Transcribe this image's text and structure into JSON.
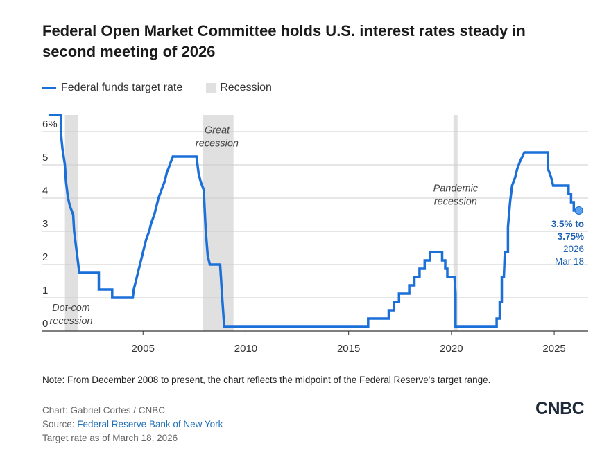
{
  "header": {
    "title": "Federal Open Market Committee holds U.S. interest rates steady in second meeting of 2026"
  },
  "legend": {
    "series_label": "Federal funds target rate",
    "recession_label": "Recession"
  },
  "colors": {
    "series": "#1a6fd8",
    "recession": "#e0e0e0",
    "grid": "#cccccc",
    "annotation_value": "#1a5fb4"
  },
  "chart_data": {
    "type": "line",
    "title": "Federal Open Market Committee holds U.S. interest rates steady in second meeting of 2026",
    "xlabel": "",
    "ylabel": "",
    "xlim": [
      2000.1,
      2026.65
    ],
    "ylim": [
      0,
      6.5
    ],
    "x_ticks": [
      2005,
      2010,
      2015,
      2020,
      2025
    ],
    "y_ticks": [
      0,
      1,
      2,
      3,
      4,
      5,
      6
    ],
    "y_tick_labels": [
      "0",
      "1",
      "2",
      "3",
      "4",
      "5",
      "6%"
    ],
    "grid": true,
    "legend_position": "top-left",
    "series": [
      {
        "name": "Federal funds target rate",
        "points": [
          [
            2000.4,
            6.5
          ],
          [
            2001.0,
            6.5
          ],
          [
            2001.0,
            6.0
          ],
          [
            2001.08,
            5.5
          ],
          [
            2001.2,
            5.0
          ],
          [
            2001.25,
            4.5
          ],
          [
            2001.35,
            4.0
          ],
          [
            2001.45,
            3.75
          ],
          [
            2001.6,
            3.5
          ],
          [
            2001.65,
            3.0
          ],
          [
            2001.75,
            2.5
          ],
          [
            2001.85,
            2.0
          ],
          [
            2001.9,
            1.75
          ],
          [
            2002.85,
            1.75
          ],
          [
            2002.85,
            1.25
          ],
          [
            2003.5,
            1.25
          ],
          [
            2003.5,
            1.0
          ],
          [
            2004.5,
            1.0
          ],
          [
            2004.55,
            1.25
          ],
          [
            2004.65,
            1.5
          ],
          [
            2004.75,
            1.75
          ],
          [
            2004.85,
            2.0
          ],
          [
            2004.95,
            2.25
          ],
          [
            2005.05,
            2.5
          ],
          [
            2005.15,
            2.75
          ],
          [
            2005.3,
            3.0
          ],
          [
            2005.4,
            3.25
          ],
          [
            2005.55,
            3.5
          ],
          [
            2005.65,
            3.75
          ],
          [
            2005.75,
            4.0
          ],
          [
            2005.9,
            4.25
          ],
          [
            2006.05,
            4.5
          ],
          [
            2006.15,
            4.75
          ],
          [
            2006.3,
            5.0
          ],
          [
            2006.45,
            5.25
          ],
          [
            2007.6,
            5.25
          ],
          [
            2007.7,
            4.75
          ],
          [
            2007.8,
            4.5
          ],
          [
            2007.95,
            4.25
          ],
          [
            2008.05,
            3.0
          ],
          [
            2008.15,
            2.25
          ],
          [
            2008.25,
            2.0
          ],
          [
            2008.75,
            2.0
          ],
          [
            2008.8,
            1.5
          ],
          [
            2008.85,
            1.0
          ],
          [
            2008.95,
            0.125
          ],
          [
            2015.95,
            0.125
          ],
          [
            2015.95,
            0.375
          ],
          [
            2016.95,
            0.375
          ],
          [
            2016.95,
            0.625
          ],
          [
            2017.2,
            0.625
          ],
          [
            2017.2,
            0.875
          ],
          [
            2017.45,
            0.875
          ],
          [
            2017.45,
            1.125
          ],
          [
            2017.95,
            1.125
          ],
          [
            2017.95,
            1.375
          ],
          [
            2018.2,
            1.375
          ],
          [
            2018.2,
            1.625
          ],
          [
            2018.45,
            1.625
          ],
          [
            2018.45,
            1.875
          ],
          [
            2018.7,
            1.875
          ],
          [
            2018.7,
            2.125
          ],
          [
            2018.95,
            2.125
          ],
          [
            2018.95,
            2.375
          ],
          [
            2019.55,
            2.375
          ],
          [
            2019.55,
            2.125
          ],
          [
            2019.7,
            2.125
          ],
          [
            2019.7,
            1.875
          ],
          [
            2019.8,
            1.875
          ],
          [
            2019.8,
            1.625
          ],
          [
            2020.15,
            1.625
          ],
          [
            2020.2,
            1.125
          ],
          [
            2020.2,
            0.125
          ],
          [
            2022.2,
            0.125
          ],
          [
            2022.2,
            0.375
          ],
          [
            2022.35,
            0.375
          ],
          [
            2022.35,
            0.875
          ],
          [
            2022.45,
            0.875
          ],
          [
            2022.45,
            1.625
          ],
          [
            2022.55,
            1.625
          ],
          [
            2022.6,
            2.375
          ],
          [
            2022.75,
            2.375
          ],
          [
            2022.75,
            3.125
          ],
          [
            2022.85,
            3.875
          ],
          [
            2022.95,
            4.375
          ],
          [
            2023.1,
            4.625
          ],
          [
            2023.2,
            4.875
          ],
          [
            2023.35,
            5.125
          ],
          [
            2023.55,
            5.375
          ],
          [
            2024.7,
            5.375
          ],
          [
            2024.7,
            4.875
          ],
          [
            2024.85,
            4.625
          ],
          [
            2024.95,
            4.375
          ],
          [
            2025.7,
            4.375
          ],
          [
            2025.7,
            4.125
          ],
          [
            2025.82,
            4.125
          ],
          [
            2025.82,
            3.875
          ],
          [
            2025.95,
            3.875
          ],
          [
            2025.95,
            3.625
          ],
          [
            2026.2,
            3.625
          ]
        ]
      }
    ],
    "recessions": [
      {
        "label": "Dot-com recession",
        "label_lines": [
          "Dot-com",
          "recession"
        ],
        "start": 2001.2,
        "end": 2001.85
      },
      {
        "label": "Great recession",
        "label_lines": [
          "Great",
          "recession"
        ],
        "start": 2007.9,
        "end": 2009.4
      },
      {
        "label": "Pandemic recession",
        "label_lines": [
          "Pandemic",
          "recession"
        ],
        "start": 2020.1,
        "end": 2020.3
      }
    ],
    "annotation": {
      "x": 2026.2,
      "y": 3.625,
      "value_lines": [
        "3.5% to",
        "3.75%"
      ],
      "date_lines": [
        "2026",
        "Mar 18"
      ]
    }
  },
  "footer": {
    "note": "Note: From December 2008 to present, the chart reflects the midpoint of the Federal Reserve's target range.",
    "chart_credit": "Chart: Gabriel Cortes / CNBC",
    "source_prefix": "Source: ",
    "source_link": "Federal Reserve Bank of New York",
    "as_of": "Target rate as of March 18, 2026",
    "logo_text": "CNBC"
  }
}
